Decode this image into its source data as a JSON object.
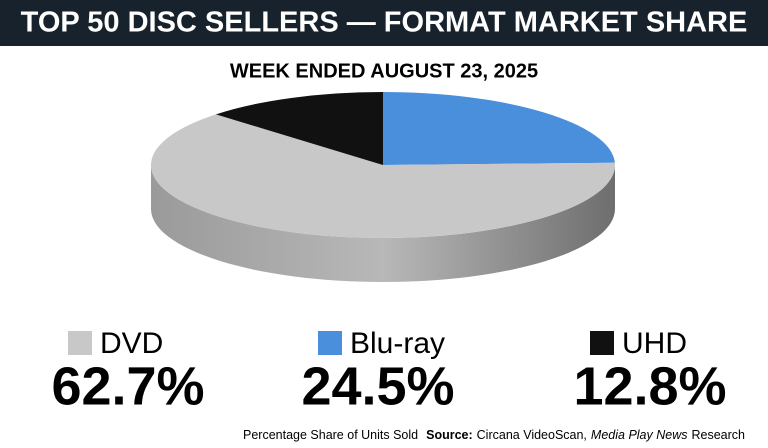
{
  "chart_data": {
    "type": "pie",
    "title": "TOP 50 DISC SELLERS — FORMAT MARKET SHARE",
    "subtitle": "WEEK ENDED AUGUST 23, 2025",
    "categories": [
      "DVD",
      "Blu-ray",
      "UHD"
    ],
    "values": [
      62.7,
      24.5,
      12.8
    ],
    "value_labels": [
      "62.7%",
      "24.5%",
      "12.8%"
    ],
    "colors": [
      "#c8c8c8",
      "#4a8fdb",
      "#111111"
    ],
    "note": "Percentage Share of Units Sold",
    "source": [
      "Source:",
      "Circana VideoScan,",
      "Media Play News",
      "Research"
    ]
  }
}
